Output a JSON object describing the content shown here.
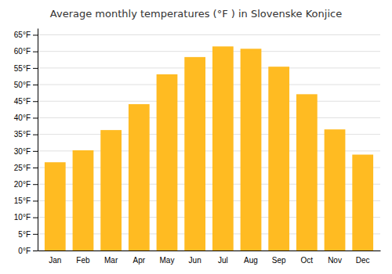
{
  "chart_data": {
    "type": "bar",
    "title": "Average monthly temperatures (°F ) in Slovenske Konjice",
    "categories": [
      "Jan",
      "Feb",
      "Mar",
      "Apr",
      "May",
      "Jun",
      "Jul",
      "Aug",
      "Sep",
      "Oct",
      "Nov",
      "Dec"
    ],
    "values": [
      26.6,
      30.2,
      36.3,
      44.1,
      53.1,
      58.3,
      61.5,
      60.8,
      55.4,
      47.1,
      36.5,
      28.9
    ],
    "color": "#FFBB22",
    "ylim": [
      0,
      67
    ],
    "yticks": [
      {
        "value": 0,
        "label": "0°F"
      },
      {
        "value": 5,
        "label": "5°F"
      },
      {
        "value": 10,
        "label": "10°F"
      },
      {
        "value": 15,
        "label": "15°F"
      },
      {
        "value": 20,
        "label": "20°F"
      },
      {
        "value": 25,
        "label": "25°F"
      },
      {
        "value": 30,
        "label": "30°F"
      },
      {
        "value": 35,
        "label": "35°F"
      },
      {
        "value": 40,
        "label": "40°F"
      },
      {
        "value": 45,
        "label": "45°F"
      },
      {
        "value": 50,
        "label": "50°F"
      },
      {
        "value": 55,
        "label": "55°F"
      },
      {
        "value": 60,
        "label": "60°F"
      },
      {
        "value": 65,
        "label": "65°F"
      }
    ],
    "grid": true
  }
}
